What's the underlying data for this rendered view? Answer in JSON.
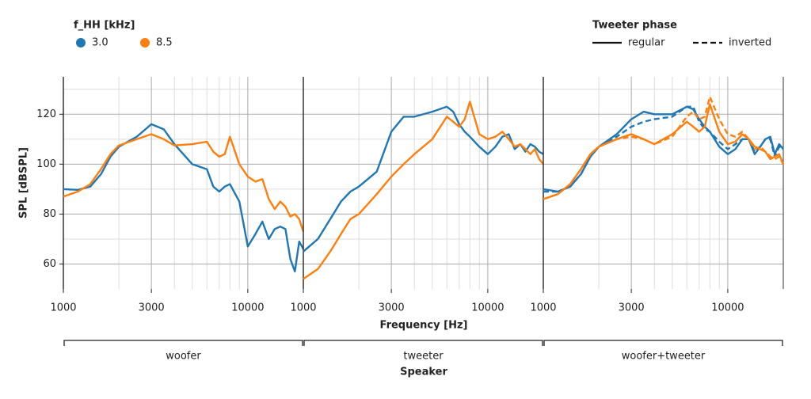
{
  "legends": [
    {
      "title": "f_HH [kHz]",
      "entries": [
        {
          "label": "3.0",
          "color": "#1f77b4"
        },
        {
          "label": "8.5",
          "color": "#ff7f0e"
        }
      ]
    },
    {
      "title": "Tweeter phase",
      "entries": [
        {
          "label": "regular",
          "dash": "none"
        },
        {
          "label": "inverted",
          "dash": "7 4"
        }
      ]
    }
  ],
  "xlabel": "Frequency [Hz]",
  "ylabel": "SPL [dBSPL]",
  "facet_title": "Speaker",
  "chart_data": [
    {
      "type": "line",
      "facet": "woofer",
      "xscale": "log",
      "grid": true,
      "x": [
        1000,
        1200,
        1400,
        1600,
        1800,
        2000,
        2500,
        3000,
        3500,
        4000,
        5000,
        6000,
        6500,
        7000,
        7500,
        8000,
        9000,
        10000,
        11000,
        12000,
        13000,
        14000,
        15000,
        16000,
        17000,
        18000,
        19000,
        20000
      ],
      "xlim": [
        1000,
        20000
      ],
      "xticks": [
        1000,
        3000,
        10000
      ],
      "xminor": [
        2000,
        4000,
        5000,
        6000,
        7000,
        8000,
        9000
      ],
      "ylim": [
        50,
        135
      ],
      "yticks": [
        60,
        80,
        100,
        120
      ],
      "yminor": [
        70,
        90,
        110,
        130
      ],
      "series": [
        {
          "name": "3.0",
          "phase": "regular",
          "color": "#1f77b4",
          "values": [
            90,
            89.7,
            91,
            96,
            103,
            107,
            111,
            116,
            114,
            108,
            100,
            98,
            91,
            89,
            91,
            92,
            85,
            67,
            72,
            77,
            70,
            74,
            75,
            74,
            62,
            57,
            69,
            66
          ]
        },
        {
          "name": "8.5",
          "phase": "regular",
          "color": "#ff7f0e",
          "values": [
            87,
            89,
            92,
            98,
            104,
            107.5,
            110,
            112,
            110,
            107.5,
            108,
            109,
            105,
            103,
            104,
            111,
            100,
            95,
            93,
            94,
            86,
            82,
            85,
            83,
            79,
            80,
            78,
            73
          ]
        }
      ]
    },
    {
      "type": "line",
      "facet": "tweeter",
      "xscale": "log",
      "grid": true,
      "x": [
        1000,
        1200,
        1400,
        1600,
        1800,
        2000,
        2500,
        3000,
        3500,
        4000,
        5000,
        6000,
        6500,
        7000,
        7500,
        8000,
        9000,
        10000,
        11000,
        12000,
        13000,
        14000,
        15000,
        16000,
        17000,
        18000,
        19000,
        20000
      ],
      "xlim": [
        1000,
        20000
      ],
      "xticks": [
        1000,
        3000,
        10000
      ],
      "xminor": [
        2000,
        4000,
        5000,
        6000,
        7000,
        8000,
        9000
      ],
      "ylim": [
        50,
        135
      ],
      "yticks": [
        60,
        80,
        100,
        120
      ],
      "yminor": [
        70,
        90,
        110,
        130
      ],
      "series": [
        {
          "name": "3.0",
          "phase": "regular",
          "color": "#1f77b4",
          "values": [
            65,
            70,
            78,
            85,
            89,
            91,
            97,
            113,
            119,
            119,
            121,
            123,
            121,
            116,
            113,
            111,
            107,
            104,
            107,
            111,
            112,
            106,
            108,
            105,
            108,
            107,
            105,
            104
          ]
        },
        {
          "name": "8.5",
          "phase": "regular",
          "color": "#ff7f0e",
          "values": [
            54,
            58,
            65,
            72,
            78,
            80,
            88,
            95,
            100,
            104,
            110,
            119,
            117,
            115,
            118,
            125,
            112,
            110,
            111,
            113,
            110,
            107,
            108,
            106,
            104,
            106,
            102,
            100
          ]
        }
      ]
    },
    {
      "type": "line",
      "facet": "woofer+tweeter",
      "xscale": "log",
      "grid": true,
      "x": [
        1000,
        1200,
        1400,
        1600,
        1800,
        2000,
        2500,
        3000,
        3500,
        4000,
        5000,
        6000,
        6500,
        7000,
        7500,
        8000,
        9000,
        10000,
        11000,
        12000,
        13000,
        14000,
        15000,
        16000,
        17000,
        18000,
        19000,
        20000
      ],
      "xlim": [
        1000,
        20000
      ],
      "xticks": [
        1000,
        3000,
        10000
      ],
      "xminor": [
        2000,
        4000,
        5000,
        6000,
        7000,
        8000,
        9000
      ],
      "ylim": [
        50,
        135
      ],
      "yticks": [
        60,
        80,
        100,
        120
      ],
      "yminor": [
        70,
        90,
        110,
        130
      ],
      "series": [
        {
          "name": "3.0",
          "phase": "regular",
          "color": "#1f77b4",
          "values": [
            90,
            89,
            91,
            96,
            103,
            107,
            112,
            118,
            121,
            120,
            120,
            123,
            122,
            118,
            115,
            113,
            107,
            104,
            106,
            110,
            110,
            104,
            107,
            110,
            111,
            104,
            108,
            106
          ]
        },
        {
          "name": "3.0",
          "phase": "inverted",
          "color": "#1f77b4",
          "values": [
            89,
            89,
            91,
            96,
            103,
            107,
            111,
            115,
            117,
            118,
            119,
            123,
            123,
            117,
            114,
            113,
            109,
            106,
            108,
            110,
            110,
            105,
            107,
            110,
            110,
            103,
            107,
            106
          ]
        },
        {
          "name": "8.5",
          "phase": "regular",
          "color": "#ff7f0e",
          "values": [
            86,
            88,
            92,
            98,
            104,
            107,
            110,
            112,
            110,
            108,
            112,
            117,
            115,
            113,
            115,
            124,
            113,
            108,
            109,
            112,
            110,
            107,
            106,
            105,
            102,
            103,
            104,
            100
          ]
        },
        {
          "name": "8.5",
          "phase": "inverted",
          "color": "#ff7f0e",
          "values": [
            86,
            88,
            92,
            98,
            104,
            107,
            110,
            111,
            110,
            108,
            111,
            119,
            121,
            118,
            119,
            127,
            118,
            112,
            111,
            113,
            110,
            106,
            107,
            105,
            103,
            102,
            103,
            100
          ]
        }
      ]
    }
  ]
}
